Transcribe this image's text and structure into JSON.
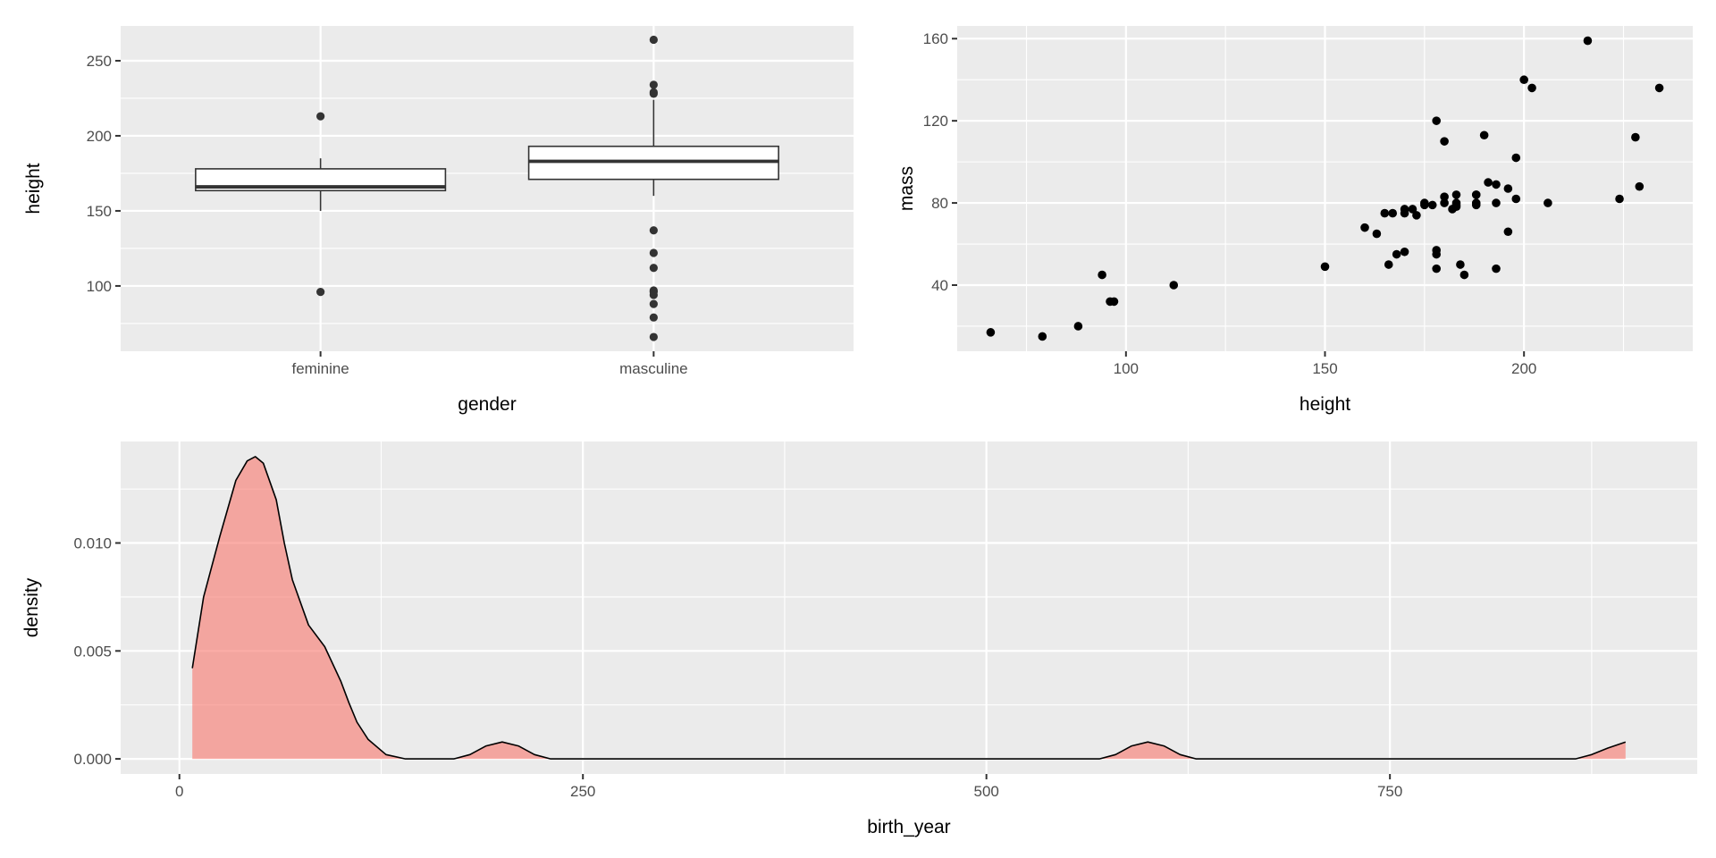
{
  "chart_data": [
    {
      "type": "box",
      "xlabel": "gender",
      "ylabel": "height",
      "categories": [
        "feminine",
        "masculine"
      ],
      "boxes": [
        {
          "whisker_low": 150,
          "q1": 163.5,
          "median": 166,
          "q3": 178,
          "whisker_high": 185,
          "outliers": [
            96,
            213
          ]
        },
        {
          "whisker_low": 160,
          "q1": 171,
          "median": 183,
          "q3": 193,
          "whisker_high": 224,
          "outliers": [
            264,
            234,
            229,
            228,
            137,
            122,
            112,
            97,
            96,
            94,
            88,
            79,
            66
          ]
        }
      ],
      "ylim": [
        56.5,
        273.2
      ],
      "yticks": [
        100,
        150,
        200,
        250
      ],
      "yticklabels": [
        "100",
        "150",
        "200",
        "250"
      ],
      "grid": true
    },
    {
      "type": "scatter",
      "xlabel": "height",
      "ylabel": "mass",
      "x": [
        172,
        167,
        96,
        202,
        150,
        178,
        165,
        97,
        183,
        182,
        188,
        228,
        180,
        173,
        170,
        180,
        66,
        170,
        183,
        200,
        190,
        177,
        175,
        180,
        88,
        160,
        193,
        191,
        185,
        196,
        224,
        79,
        94,
        112,
        198,
        196,
        188,
        188,
        163,
        193,
        168,
        198,
        183,
        170,
        166,
        216,
        178,
        193,
        178,
        206,
        175,
        178,
        183,
        188,
        184,
        229,
        234
      ],
      "y": [
        77,
        75,
        32,
        136,
        49,
        120,
        75,
        32,
        84,
        77,
        84,
        112,
        80,
        74,
        77,
        110,
        17,
        75,
        78.2,
        140,
        113,
        79,
        79,
        83,
        20,
        68,
        89,
        90,
        45,
        66,
        82,
        15,
        45,
        40,
        82,
        87,
        84,
        80,
        65,
        80,
        55,
        102,
        79,
        56.2,
        50,
        159,
        57,
        48,
        48,
        80,
        80,
        55,
        80,
        79,
        50,
        88,
        136
      ],
      "xlim": [
        57.6,
        242.4
      ],
      "ylim": [
        7.8,
        166.2
      ],
      "xticks": [
        100,
        150,
        200
      ],
      "xticklabels": [
        "100",
        "150",
        "200"
      ],
      "yticks": [
        40,
        80,
        120,
        160
      ],
      "yticklabels": [
        "40",
        "80",
        "120",
        "160"
      ],
      "grid": true
    },
    {
      "type": "area",
      "xlabel": "birth_year",
      "ylabel": "density",
      "x": [
        8,
        15,
        25,
        35,
        42,
        47,
        52,
        60,
        65,
        70,
        80,
        90,
        100,
        105,
        110,
        117,
        128,
        140,
        170,
        180,
        190,
        200,
        210,
        220,
        230,
        570,
        580,
        590,
        600,
        610,
        620,
        630,
        865,
        875,
        885,
        896
      ],
      "y": [
        0.0042,
        0.0075,
        0.0103,
        0.0129,
        0.0138,
        0.014,
        0.0137,
        0.012,
        0.01,
        0.0083,
        0.0062,
        0.0052,
        0.0036,
        0.0026,
        0.0017,
        0.0009,
        0.0002,
        0,
        0,
        0.0002,
        0.0006,
        0.00078,
        0.0006,
        0.0002,
        0,
        0,
        0.0002,
        0.0006,
        0.00078,
        0.0006,
        0.0002,
        0,
        0,
        0.0002,
        0.0005,
        0.00078
      ],
      "xlim": [
        -36.4,
        940.4
      ],
      "ylim": [
        -0.0007,
        0.0147
      ],
      "xticks": [
        0,
        250,
        500,
        750
      ],
      "xticklabels": [
        "0",
        "250",
        "500",
        "750"
      ],
      "yticks": [
        0,
        0.005,
        0.01
      ],
      "yticklabels": [
        "0.000",
        "0.005",
        "0.010"
      ],
      "fill_color": "#F8766D",
      "grid": true
    }
  ]
}
